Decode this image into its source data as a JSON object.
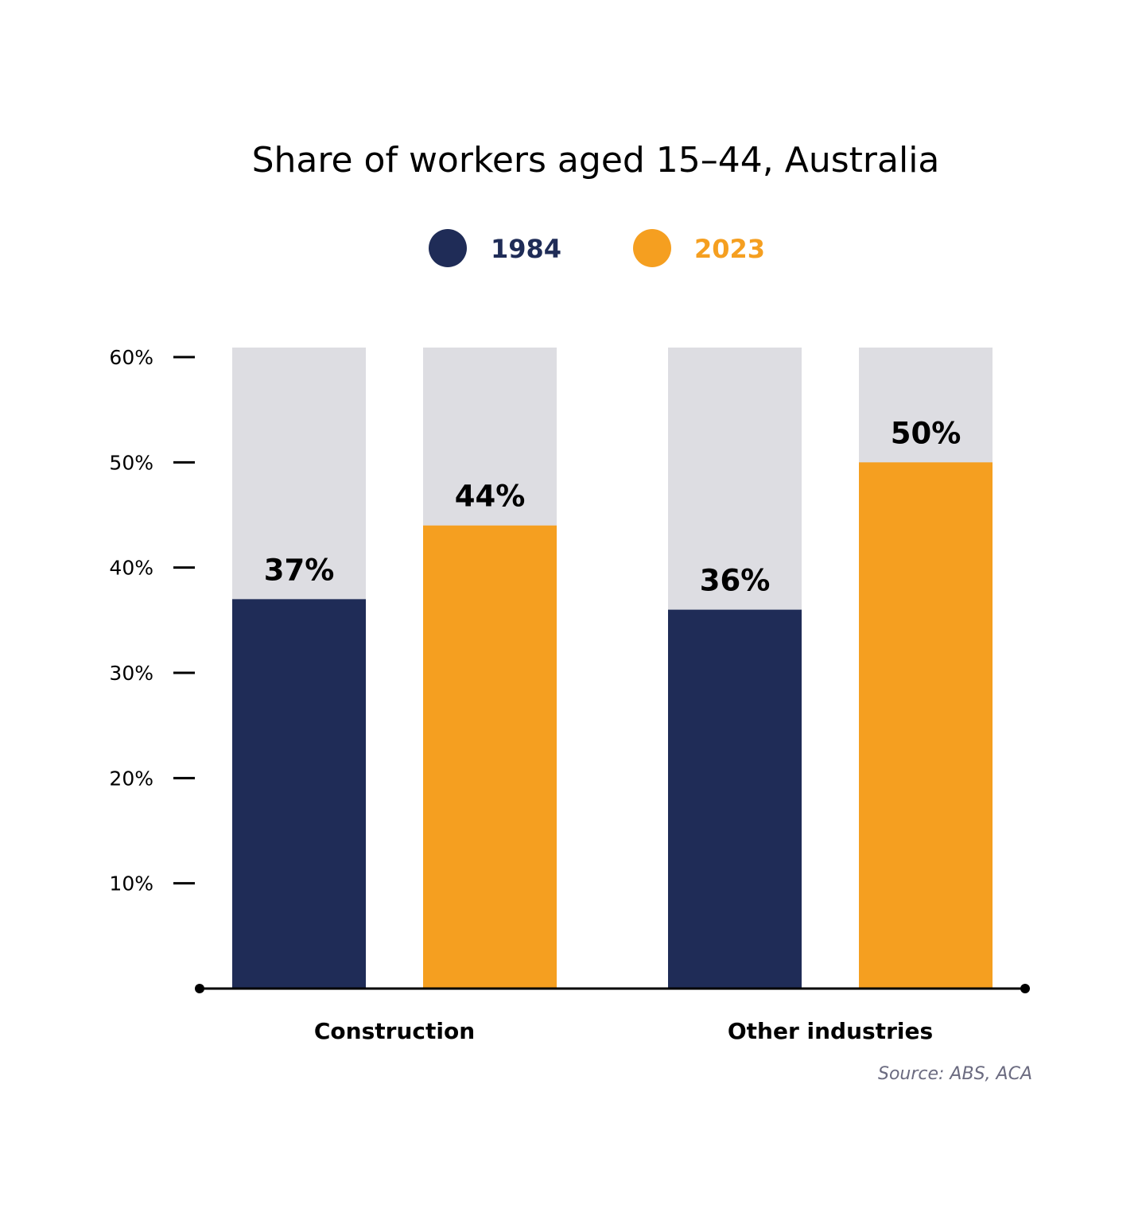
{
  "colors": {
    "series_1984": "#1f2c57",
    "series_2023": "#f59f20",
    "bar_background": "#dddde2",
    "axis": "#000000",
    "source_text": "#6b6b80"
  },
  "chart_data": {
    "type": "bar",
    "title": "Share of workers aged 15–44, Australia",
    "categories": [
      "Construction",
      "Other industries"
    ],
    "series": [
      {
        "name": "1984",
        "values": [
          37,
          36
        ],
        "labels": [
          "37%",
          "36%"
        ]
      },
      {
        "name": "2023",
        "values": [
          44,
          50
        ],
        "labels": [
          "44%",
          "50%"
        ]
      }
    ],
    "ylim": [
      0,
      60
    ],
    "yticks": [
      10,
      20,
      30,
      40,
      50,
      60
    ],
    "ytick_labels": [
      "10%",
      "20%",
      "30%",
      "40%",
      "50%",
      "60%"
    ],
    "xlabel": "",
    "ylabel": "",
    "legend_position": "top-center",
    "grid": false,
    "source": "Source: ABS, ACA"
  }
}
